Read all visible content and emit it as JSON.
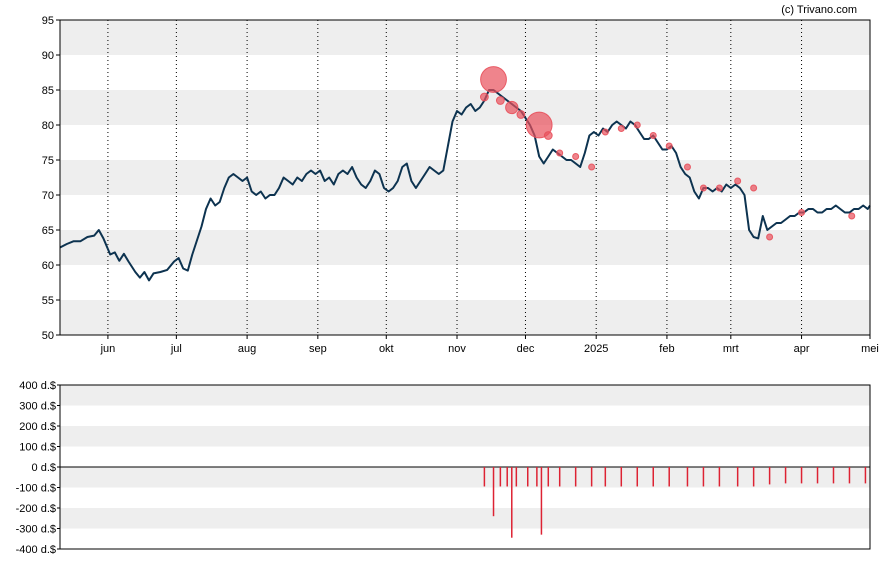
{
  "watermark": "(c) Trivano.com",
  "colors": {
    "band": "#eeeeee",
    "line": "#0d3350",
    "marker": "#e8505b",
    "volume": "#dd2233",
    "axis": "#000000"
  },
  "chart_data": [
    {
      "type": "line",
      "ylim": [
        50,
        95
      ],
      "yticks": [
        50,
        55,
        60,
        65,
        70,
        75,
        80,
        85,
        90,
        95
      ],
      "month_ticks": [
        {
          "label": "jun",
          "d": 21
        },
        {
          "label": "jul",
          "d": 51
        },
        {
          "label": "aug",
          "d": 82
        },
        {
          "label": "sep",
          "d": 113
        },
        {
          "label": "okt",
          "d": 143
        },
        {
          "label": "nov",
          "d": 174
        },
        {
          "label": "dec",
          "d": 204
        },
        {
          "label": "2025",
          "d": 235
        },
        {
          "label": "feb",
          "d": 266
        },
        {
          "label": "mrt",
          "d": 294
        },
        {
          "label": "apr",
          "d": 325
        },
        {
          "label": "mei",
          "d": 355
        }
      ],
      "x_range": [
        0,
        355
      ],
      "series": [
        {
          "points": [
            [
              0,
              62.5
            ],
            [
              3,
              63
            ],
            [
              6,
              63.4
            ],
            [
              9,
              63.4
            ],
            [
              12,
              64
            ],
            [
              15,
              64.2
            ],
            [
              17,
              65
            ],
            [
              19,
              63.8
            ],
            [
              22,
              61.5
            ],
            [
              24,
              61.8
            ],
            [
              26,
              60.6
            ],
            [
              28,
              61.6
            ],
            [
              30,
              60.5
            ],
            [
              33,
              59
            ],
            [
              35,
              58.2
            ],
            [
              37,
              59
            ],
            [
              39,
              57.8
            ],
            [
              41,
              58.8
            ],
            [
              44,
              59
            ],
            [
              47,
              59.3
            ],
            [
              50,
              60.5
            ],
            [
              52,
              61
            ],
            [
              54,
              59.5
            ],
            [
              56,
              59.2
            ],
            [
              58,
              61.5
            ],
            [
              60,
              63.5
            ],
            [
              62,
              65.5
            ],
            [
              64,
              68
            ],
            [
              66,
              69.5
            ],
            [
              68,
              68.5
            ],
            [
              70,
              69
            ],
            [
              72,
              71
            ],
            [
              74,
              72.5
            ],
            [
              76,
              73
            ],
            [
              78,
              72.5
            ],
            [
              80,
              72
            ],
            [
              82,
              72.5
            ],
            [
              84,
              70.5
            ],
            [
              86,
              70
            ],
            [
              88,
              70.5
            ],
            [
              90,
              69.5
            ],
            [
              92,
              70
            ],
            [
              94,
              70
            ],
            [
              96,
              71
            ],
            [
              98,
              72.5
            ],
            [
              100,
              72
            ],
            [
              102,
              71.5
            ],
            [
              104,
              72.5
            ],
            [
              106,
              72
            ],
            [
              108,
              73
            ],
            [
              110,
              73.5
            ],
            [
              112,
              73
            ],
            [
              114,
              73.5
            ],
            [
              116,
              72
            ],
            [
              118,
              72.5
            ],
            [
              120,
              71.5
            ],
            [
              122,
              73
            ],
            [
              124,
              73.5
            ],
            [
              126,
              73
            ],
            [
              128,
              74
            ],
            [
              130,
              72.5
            ],
            [
              132,
              71.5
            ],
            [
              134,
              71
            ],
            [
              136,
              72
            ],
            [
              138,
              73.5
            ],
            [
              140,
              73
            ],
            [
              142,
              71
            ],
            [
              144,
              70.5
            ],
            [
              146,
              71
            ],
            [
              148,
              72
            ],
            [
              150,
              74
            ],
            [
              152,
              74.5
            ],
            [
              154,
              72
            ],
            [
              156,
              71
            ],
            [
              158,
              72
            ],
            [
              160,
              73
            ],
            [
              162,
              74
            ],
            [
              164,
              73.5
            ],
            [
              166,
              73
            ],
            [
              168,
              73.5
            ],
            [
              170,
              77
            ],
            [
              172,
              80.5
            ],
            [
              174,
              82
            ],
            [
              176,
              81.5
            ],
            [
              178,
              82.5
            ],
            [
              180,
              83
            ],
            [
              182,
              82
            ],
            [
              184,
              82.5
            ],
            [
              186,
              83.5
            ],
            [
              188,
              85
            ],
            [
              190,
              85
            ],
            [
              192,
              84.5
            ],
            [
              194,
              84
            ],
            [
              196,
              83.5
            ],
            [
              198,
              83
            ],
            [
              200,
              82.5
            ],
            [
              202,
              82
            ],
            [
              204,
              81
            ],
            [
              206,
              80
            ],
            [
              208,
              78.5
            ],
            [
              210,
              75.5
            ],
            [
              212,
              74.5
            ],
            [
              214,
              75.5
            ],
            [
              216,
              76.5
            ],
            [
              218,
              76
            ],
            [
              220,
              75.5
            ],
            [
              222,
              75
            ],
            [
              224,
              75
            ],
            [
              226,
              74.5
            ],
            [
              228,
              74
            ],
            [
              230,
              76
            ],
            [
              232,
              78.5
            ],
            [
              234,
              79
            ],
            [
              236,
              78.5
            ],
            [
              238,
              79.5
            ],
            [
              240,
              79
            ],
            [
              242,
              80
            ],
            [
              244,
              80.5
            ],
            [
              246,
              80
            ],
            [
              248,
              79.5
            ],
            [
              250,
              80.5
            ],
            [
              252,
              80
            ],
            [
              254,
              79
            ],
            [
              256,
              78
            ],
            [
              258,
              78
            ],
            [
              260,
              78.5
            ],
            [
              262,
              77.5
            ],
            [
              264,
              76.5
            ],
            [
              266,
              76.5
            ],
            [
              268,
              77
            ],
            [
              270,
              76
            ],
            [
              272,
              74
            ],
            [
              274,
              73
            ],
            [
              276,
              72.5
            ],
            [
              278,
              70.5
            ],
            [
              280,
              69.5
            ],
            [
              282,
              71
            ],
            [
              284,
              71
            ],
            [
              286,
              70.5
            ],
            [
              288,
              71
            ],
            [
              290,
              70.5
            ],
            [
              292,
              71.5
            ],
            [
              294,
              71
            ],
            [
              296,
              71.5
            ],
            [
              298,
              71
            ],
            [
              300,
              70
            ],
            [
              302,
              65
            ],
            [
              304,
              64
            ],
            [
              306,
              63.8
            ],
            [
              308,
              67
            ],
            [
              310,
              65
            ],
            [
              312,
              65.5
            ],
            [
              314,
              66
            ],
            [
              316,
              66
            ],
            [
              318,
              66.5
            ],
            [
              320,
              67
            ],
            [
              322,
              67
            ],
            [
              324,
              67.5
            ],
            [
              326,
              67.5
            ],
            [
              328,
              68
            ],
            [
              330,
              68
            ],
            [
              332,
              67.5
            ],
            [
              334,
              67.5
            ],
            [
              336,
              68
            ],
            [
              338,
              68
            ],
            [
              340,
              68.5
            ],
            [
              342,
              68
            ],
            [
              344,
              67.5
            ],
            [
              346,
              67.5
            ],
            [
              348,
              68
            ],
            [
              350,
              68
            ],
            [
              352,
              68.5
            ],
            [
              354,
              68
            ],
            [
              355,
              68.5
            ]
          ]
        }
      ],
      "markers": [
        {
          "d": 186,
          "y": 84,
          "size": 1
        },
        {
          "d": 190,
          "y": 86.5,
          "size": 3
        },
        {
          "d": 193,
          "y": 83.5,
          "size": 1
        },
        {
          "d": 198,
          "y": 82.5,
          "size": 1.5
        },
        {
          "d": 202,
          "y": 81.5,
          "size": 1
        },
        {
          "d": 210,
          "y": 80,
          "size": 3
        },
        {
          "d": 214,
          "y": 78.5,
          "size": 1
        },
        {
          "d": 219,
          "y": 76,
          "size": 0.8
        },
        {
          "d": 226,
          "y": 75.5,
          "size": 0.8
        },
        {
          "d": 233,
          "y": 74,
          "size": 0.8
        },
        {
          "d": 239,
          "y": 79,
          "size": 0.8
        },
        {
          "d": 246,
          "y": 79.5,
          "size": 0.8
        },
        {
          "d": 253,
          "y": 80,
          "size": 0.8
        },
        {
          "d": 260,
          "y": 78.5,
          "size": 0.8
        },
        {
          "d": 267,
          "y": 77,
          "size": 0.8
        },
        {
          "d": 275,
          "y": 74,
          "size": 0.8
        },
        {
          "d": 282,
          "y": 71,
          "size": 0.8
        },
        {
          "d": 289,
          "y": 71,
          "size": 0.8
        },
        {
          "d": 297,
          "y": 72,
          "size": 0.8
        },
        {
          "d": 304,
          "y": 71,
          "size": 0.8
        },
        {
          "d": 311,
          "y": 64,
          "size": 0.8
        },
        {
          "d": 325,
          "y": 67.5,
          "size": 0.8
        },
        {
          "d": 347,
          "y": 67,
          "size": 0.8
        }
      ]
    },
    {
      "type": "bar",
      "ylim": [
        -400,
        400
      ],
      "yticks": [
        400,
        300,
        200,
        100,
        0,
        -100,
        -200,
        -300,
        -400
      ],
      "tick_labels": [
        "400 d.$",
        "300 d.$",
        "200 d.$",
        "100 d.$",
        "0 d.$",
        "-100 d.$",
        "-200 d.$",
        "-300 d.$",
        "-400 d.$"
      ],
      "bars": [
        [
          186,
          -95
        ],
        [
          190,
          -240
        ],
        [
          193,
          -95
        ],
        [
          196,
          -95
        ],
        [
          198,
          -345
        ],
        [
          200,
          -95
        ],
        [
          205,
          -95
        ],
        [
          209,
          -95
        ],
        [
          211,
          -330
        ],
        [
          214,
          -95
        ],
        [
          219,
          -95
        ],
        [
          226,
          -95
        ],
        [
          233,
          -95
        ],
        [
          239,
          -95
        ],
        [
          246,
          -95
        ],
        [
          253,
          -95
        ],
        [
          260,
          -95
        ],
        [
          267,
          -95
        ],
        [
          275,
          -95
        ],
        [
          282,
          -95
        ],
        [
          289,
          -95
        ],
        [
          297,
          -95
        ],
        [
          304,
          -95
        ],
        [
          311,
          -85
        ],
        [
          318,
          -80
        ],
        [
          325,
          -80
        ],
        [
          332,
          -80
        ],
        [
          339,
          -80
        ],
        [
          346,
          -80
        ],
        [
          353,
          -80
        ]
      ]
    }
  ]
}
